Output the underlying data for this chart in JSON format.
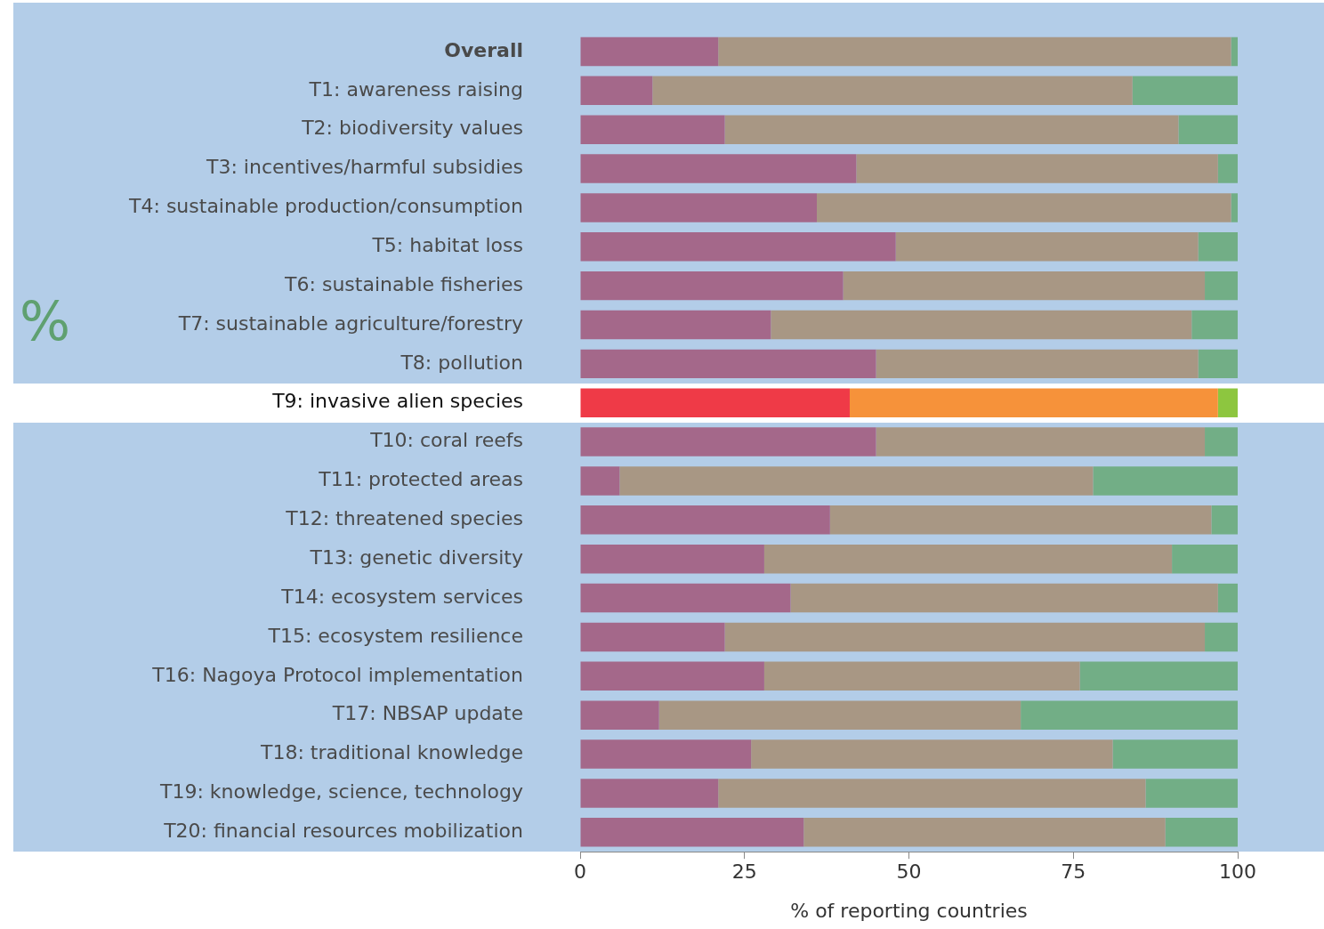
{
  "chart_data": {
    "type": "bar",
    "orientation": "horizontal",
    "stacked": true,
    "categories": [
      "Overall",
      "T1: awareness raising",
      "T2: biodiversity values",
      "T3: incentives/harmful subsidies",
      "T4: sustainable production/consumption",
      "T5: habitat loss",
      "T6: sustainable fisheries",
      "T7: sustainable agriculture/forestry",
      "T8: pollution",
      "T9: invasive alien species",
      "T10: coral reefs",
      "T11: protected areas",
      "T12: threatened species",
      "T13: genetic diversity",
      "T14: ecosystem services",
      "T15: ecosystem resilience",
      "T16: Nagoya Protocol implementation",
      "T17: NBSAP update",
      "T18: traditional knowledge",
      "T19: knowledge, science, technology",
      "T20: financial resources mobilization"
    ],
    "series": [
      {
        "colors": [
          "#a4688a",
          "#a4688a",
          "#a4688a",
          "#a4688a",
          "#a4688a",
          "#a4688a",
          "#a4688a",
          "#a4688a",
          "#a4688a",
          "#ef3a47",
          "#a4688a",
          "#a4688a",
          "#a4688a",
          "#a4688a",
          "#a4688a",
          "#a4688a",
          "#a4688a",
          "#a4688a",
          "#a4688a",
          "#a4688a",
          "#a4688a"
        ],
        "values": [
          21,
          11,
          22,
          42,
          36,
          48,
          40,
          29,
          45,
          41,
          45,
          6,
          38,
          28,
          32,
          22,
          28,
          12,
          26,
          21,
          34
        ]
      },
      {
        "colors": [
          "#a89784",
          "#a89784",
          "#a89784",
          "#a89784",
          "#a89784",
          "#a89784",
          "#a89784",
          "#a89784",
          "#a89784",
          "#f6923a",
          "#a89784",
          "#a89784",
          "#a89784",
          "#a89784",
          "#a89784",
          "#a89784",
          "#a89784",
          "#a89784",
          "#a89784",
          "#a89784",
          "#a89784"
        ],
        "values": [
          78,
          73,
          69,
          55,
          63,
          46,
          55,
          64,
          49,
          56,
          50,
          72,
          58,
          62,
          65,
          73,
          48,
          55,
          55,
          65,
          55
        ]
      },
      {
        "colors": [
          "#72ae86",
          "#72ae86",
          "#72ae86",
          "#72ae86",
          "#72ae86",
          "#72ae86",
          "#72ae86",
          "#72ae86",
          "#72ae86",
          "#8dc63f",
          "#72ae86",
          "#72ae86",
          "#72ae86",
          "#72ae86",
          "#72ae86",
          "#72ae86",
          "#72ae86",
          "#72ae86",
          "#72ae86",
          "#72ae86",
          "#72ae86"
        ],
        "values": [
          1,
          16,
          9,
          3,
          1,
          6,
          5,
          7,
          6,
          3,
          5,
          22,
          4,
          10,
          3,
          5,
          24,
          33,
          19,
          14,
          11
        ]
      }
    ],
    "bands": [
      {
        "axis": "y",
        "from": "T9: invasive alien species",
        "to": "T9: invasive alien species",
        "color": "#ffffff"
      }
    ],
    "xlim": [
      0,
      100
    ],
    "xticks": [
      0,
      25,
      50,
      75,
      100
    ],
    "xlabel": "% of reporting countries",
    "grid": false,
    "legend": false,
    "annotations": [
      "%"
    ]
  }
}
